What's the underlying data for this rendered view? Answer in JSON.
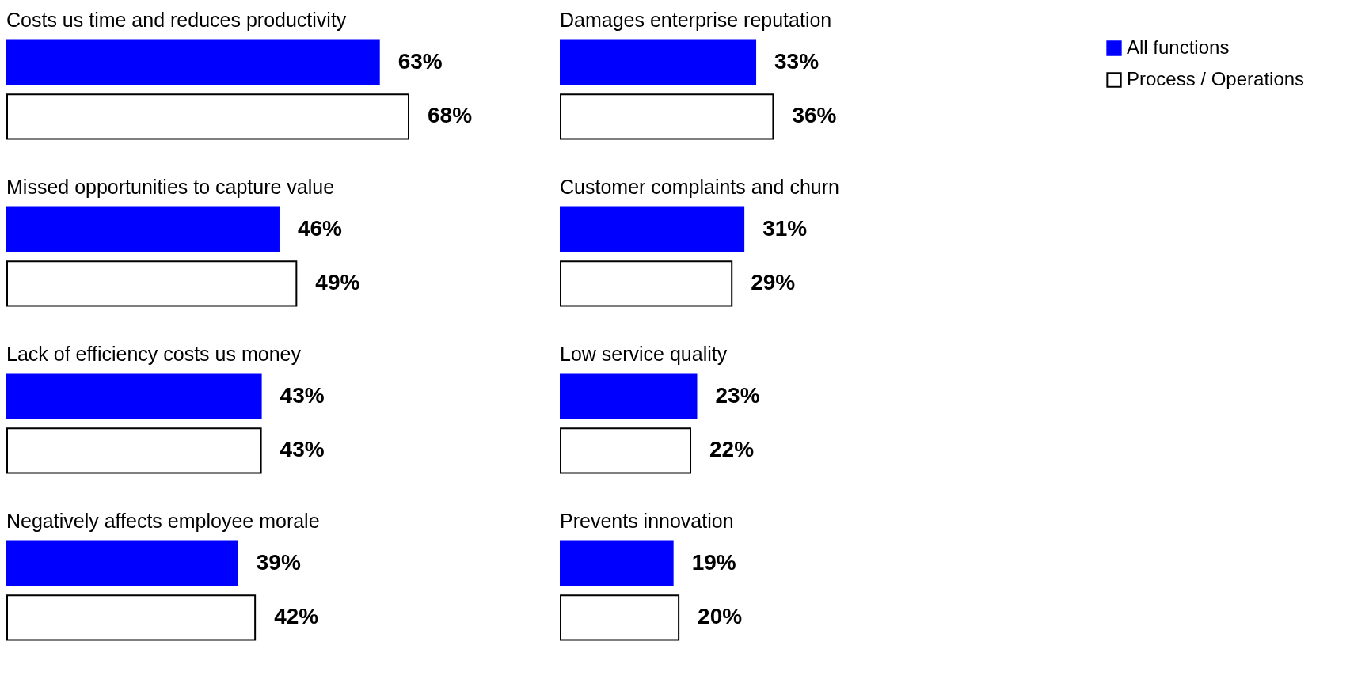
{
  "chart_data": [
    {
      "type": "bar",
      "orientation": "horizontal",
      "legend": "right",
      "categories": [
        "Costs us time and reduces productivity",
        "Missed opportunities to capture value",
        "Lack of efficiency costs us money",
        "Negatively affects employee morale"
      ],
      "series": [
        {
          "name": "All functions",
          "color": "#0000ff",
          "values": [
            63,
            46,
            43,
            39
          ],
          "value_labels": [
            "63%",
            "46%",
            "43%",
            "39%"
          ]
        },
        {
          "name": "Process / Operations",
          "color": "#ffffff",
          "values": [
            68,
            49,
            43,
            42
          ],
          "value_labels": [
            "68%",
            "49%",
            "43%",
            "42%"
          ]
        }
      ]
    },
    {
      "type": "bar",
      "orientation": "horizontal",
      "legend": "right",
      "categories": [
        "Damages enterprise reputation",
        "Customer complaints and churn",
        "Low service quality",
        "Prevents innovation"
      ],
      "series": [
        {
          "name": "All functions",
          "color": "#0000ff",
          "values": [
            33,
            31,
            23,
            19
          ],
          "value_labels": [
            "33%",
            "31%",
            "23%",
            "19%"
          ]
        },
        {
          "name": "Process / Operations",
          "color": "#ffffff",
          "values": [
            36,
            29,
            22,
            20
          ],
          "value_labels": [
            "36%",
            "29%",
            "22%",
            "20%"
          ]
        }
      ]
    }
  ]
}
